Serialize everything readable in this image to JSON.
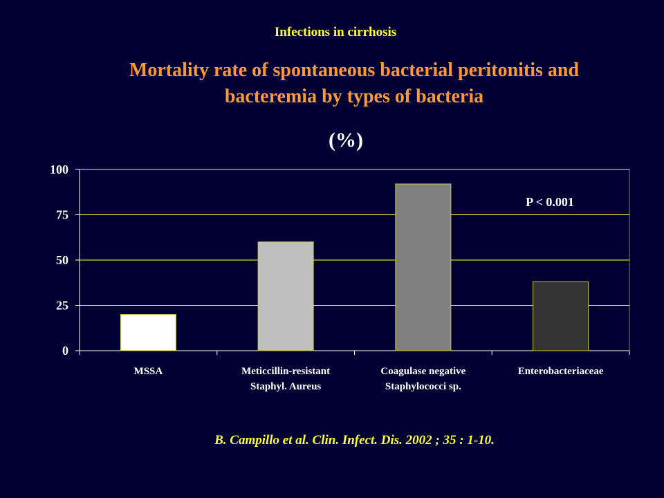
{
  "slide": {
    "header": "Infections in cirrhosis",
    "title_line1": "Mortality rate of spontaneous bacterial peritonitis and",
    "title_line2": "bacteremia by types of bacteria",
    "subtitle": "(%)",
    "citation": "B. Campillo et al. Clin. Infect. Dis. 2002 ; 35 : 1-10."
  },
  "colors": {
    "background": "#000033",
    "header": "#ffff33",
    "title": "#ff9933",
    "gridline": "#ffff33",
    "axis_text": "#ffffff"
  },
  "chart_data": {
    "type": "bar",
    "categories": [
      [
        "MSSA"
      ],
      [
        "Meticcillin-resistant",
        "Staphyl. Aureus"
      ],
      [
        "Coagulase negative",
        "Staphylococci sp."
      ],
      [
        "Enterobacteriaceae"
      ]
    ],
    "values": [
      20,
      60,
      92,
      38
    ],
    "bar_colors": [
      "#ffffff",
      "#c0c0c0",
      "#808080",
      "#333333"
    ],
    "bar_stroke": "#cccc33",
    "ylim": [
      0,
      100
    ],
    "yticks": [
      0,
      25,
      50,
      75,
      100
    ],
    "grid": true,
    "annotation": "P  < 0.001",
    "xlabel": "",
    "ylabel": ""
  }
}
